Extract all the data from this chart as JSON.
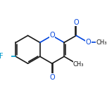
{
  "bg_color": "#ffffff",
  "bond_color": "#1a1a1a",
  "O_color": "#0044dd",
  "F_color": "#0099cc",
  "bond_lw": 1.2,
  "figsize": [
    1.52,
    1.52
  ],
  "dpi": 100,
  "xlim": [
    -3.0,
    3.5
  ],
  "ylim": [
    -2.8,
    2.2
  ]
}
